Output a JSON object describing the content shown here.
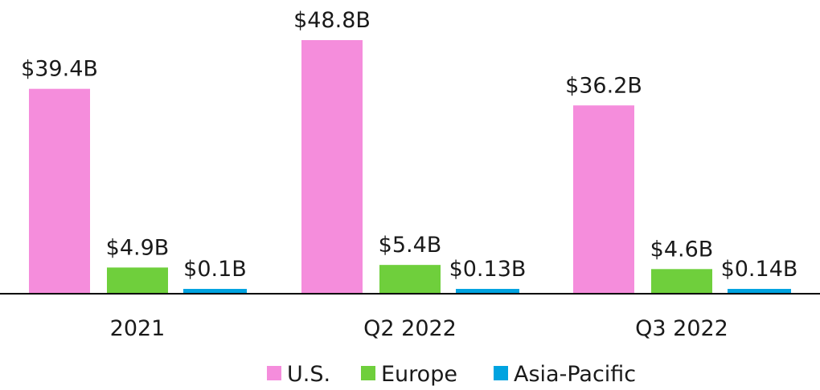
{
  "chart_data": {
    "type": "bar",
    "categories": [
      "2021",
      "Q2 2022",
      "Q3 2022"
    ],
    "series": [
      {
        "name": "U.S.",
        "values": [
          39.4,
          48.8,
          36.2
        ],
        "labels": [
          "$39.4B",
          "$48.8B",
          "$36.2B"
        ],
        "color": "#f58ddc"
      },
      {
        "name": "Europe",
        "values": [
          4.9,
          5.4,
          4.6
        ],
        "labels": [
          "$4.9B",
          "$5.4B",
          "$4.6B"
        ],
        "color": "#6fcf3c"
      },
      {
        "name": "Asia-Pacific",
        "values": [
          0.1,
          0.13,
          0.14
        ],
        "labels": [
          "$0.1B",
          "$0.13B",
          "$0.14B"
        ],
        "color": "#00a3e0"
      }
    ],
    "ylim": [
      0,
      48.8
    ],
    "grid": false,
    "legend": "bottom-center",
    "axis_color": "#000000"
  }
}
